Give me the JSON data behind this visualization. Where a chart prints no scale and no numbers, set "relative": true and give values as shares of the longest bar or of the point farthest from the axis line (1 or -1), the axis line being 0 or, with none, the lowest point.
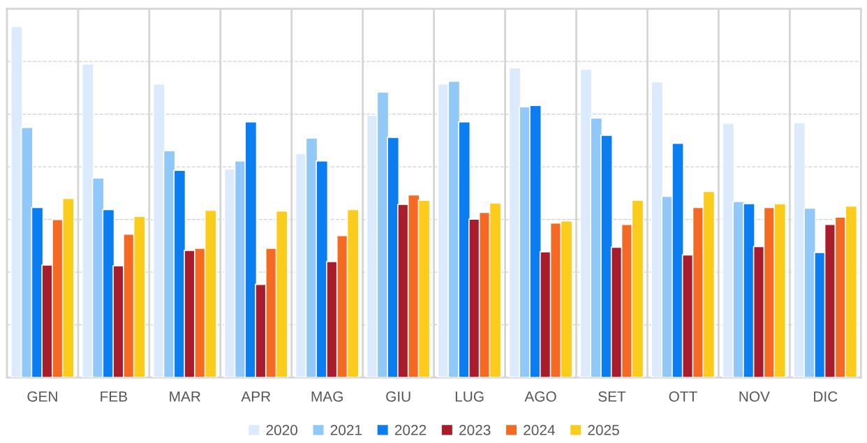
{
  "chart_data": {
    "type": "bar",
    "relative": true,
    "grid": true,
    "legend": "bottom",
    "categories": [
      "GEN",
      "FEB",
      "MAR",
      "APR",
      "MAG",
      "GIU",
      "LUG",
      "AGO",
      "SET",
      "OTT",
      "NOV",
      "DIC"
    ],
    "series": [
      {
        "name": "2020",
        "color": "#dbeafc",
        "values": [
          1.0,
          0.893,
          0.836,
          0.594,
          0.638,
          0.747,
          0.836,
          0.882,
          0.878,
          0.842,
          0.724,
          0.726
        ]
      },
      {
        "name": "2021",
        "color": "#90c8fa",
        "values": [
          0.712,
          0.568,
          0.646,
          0.617,
          0.682,
          0.813,
          0.844,
          0.771,
          0.739,
          0.516,
          0.501,
          0.482
        ]
      },
      {
        "name": "2022",
        "color": "#0a7ef0",
        "values": [
          0.484,
          0.478,
          0.59,
          0.728,
          0.617,
          0.684,
          0.728,
          0.775,
          0.69,
          0.667,
          0.495,
          0.356
        ]
      },
      {
        "name": "2023",
        "color": "#a81c2c",
        "values": [
          0.32,
          0.318,
          0.362,
          0.265,
          0.33,
          0.493,
          0.451,
          0.358,
          0.371,
          0.349,
          0.373,
          0.436
        ]
      },
      {
        "name": "2024",
        "color": "#f56a22",
        "values": [
          0.45,
          0.408,
          0.368,
          0.368,
          0.404,
          0.52,
          0.47,
          0.44,
          0.436,
          0.484,
          0.484,
          0.457
        ]
      },
      {
        "name": "2025",
        "color": "#fccc1c",
        "values": [
          0.51,
          0.459,
          0.476,
          0.474,
          0.478,
          0.505,
          0.497,
          0.446,
          0.505,
          0.53,
          0.495,
          0.488
        ]
      }
    ]
  }
}
